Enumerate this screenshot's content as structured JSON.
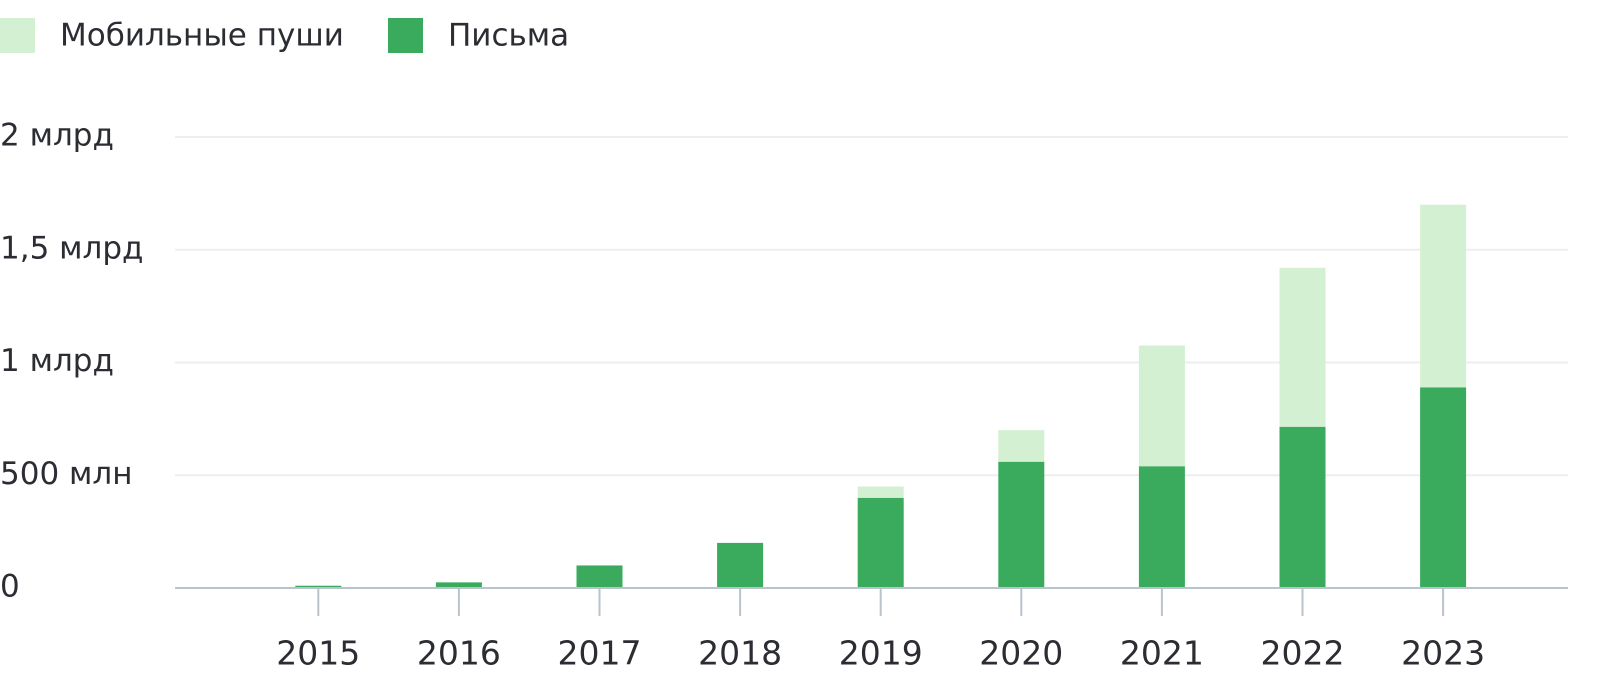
{
  "chart_data": {
    "type": "stacked-bar",
    "categories": [
      "2015",
      "2016",
      "2017",
      "2018",
      "2019",
      "2020",
      "2021",
      "2022",
      "2023"
    ],
    "series": [
      {
        "name": "Мобильные пуши",
        "color": "#d3f0d3",
        "values": [
          0,
          0,
          0,
          0,
          50,
          140,
          535,
          705,
          810
        ]
      },
      {
        "name": "Письма",
        "color": "#3aaa5c",
        "values": [
          10,
          25,
          100,
          200,
          400,
          560,
          540,
          715,
          890
        ]
      }
    ],
    "ylim": [
      0,
      2000
    ],
    "yticks": [
      0,
      {
        "value": 500,
        "label": "500 млн"
      },
      {
        "value": 1000,
        "label": "1 млрд"
      },
      {
        "value": 1500,
        "label": "1,5 млрд"
      },
      {
        "value": 2000,
        "label": "2 млрд"
      }
    ],
    "grid": true
  }
}
